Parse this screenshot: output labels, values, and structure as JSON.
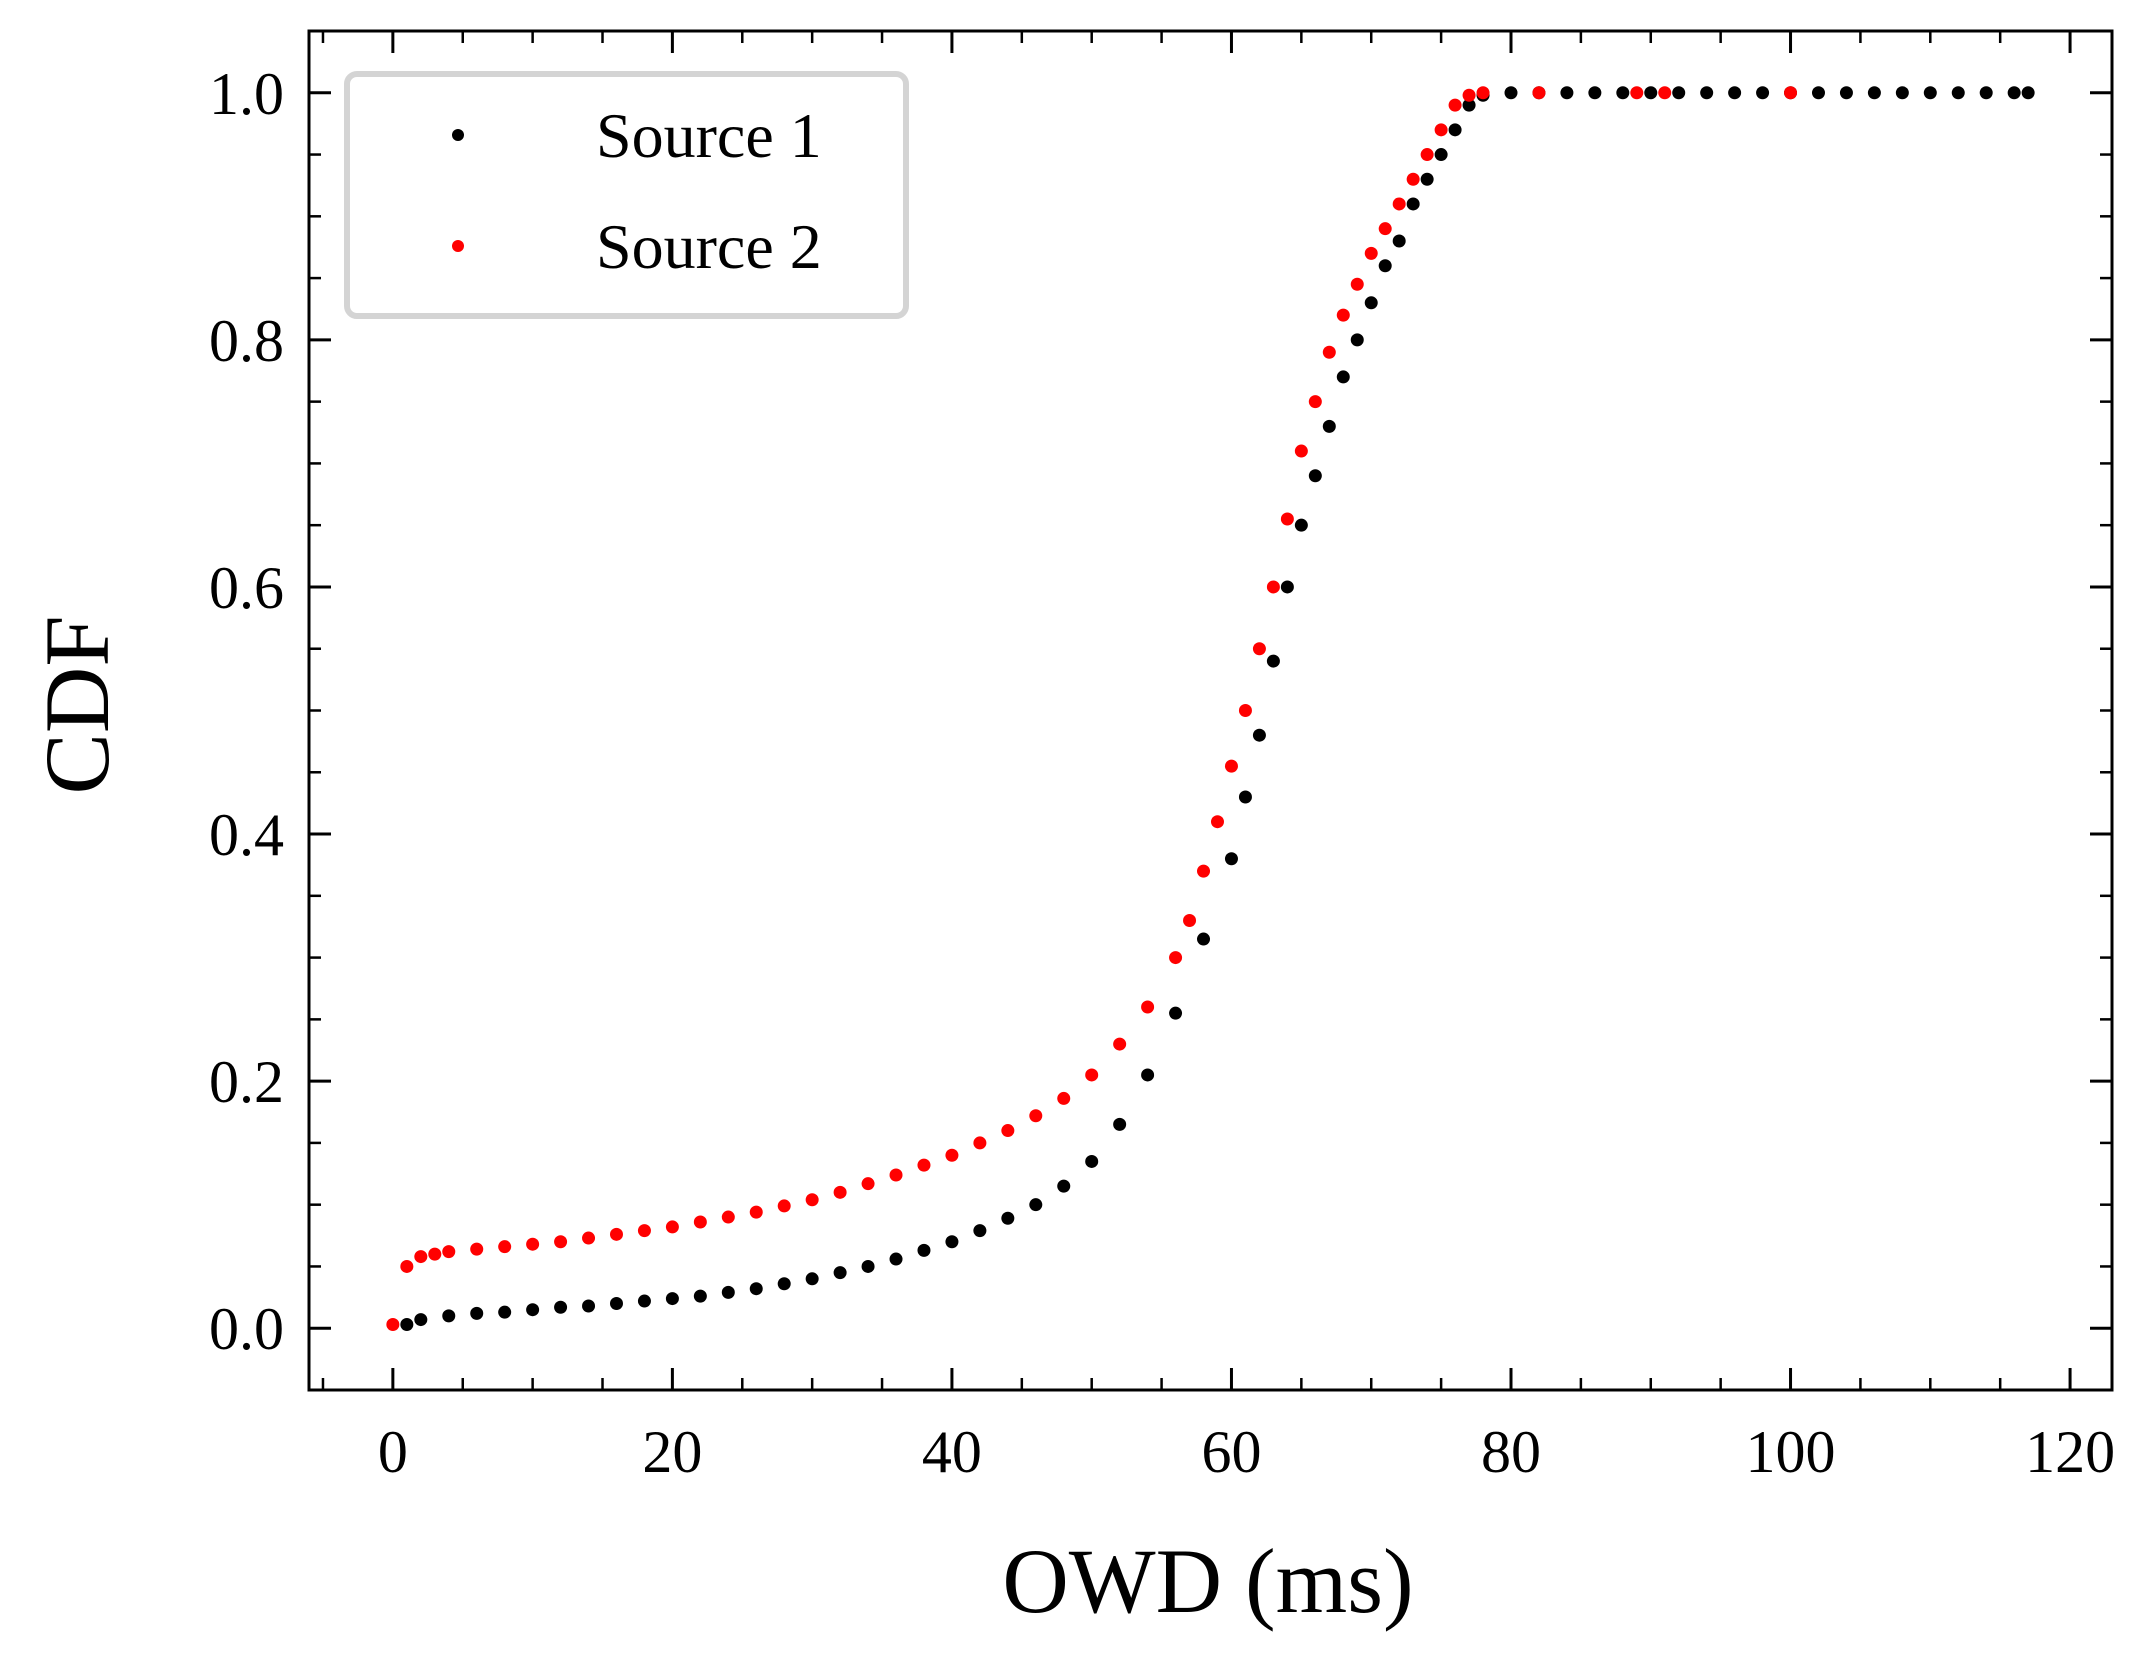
{
  "chart_data": {
    "type": "scatter",
    "xlabel": "OWD (ms)",
    "ylabel": "CDF",
    "xlim": [
      -6,
      123
    ],
    "ylim": [
      -0.05,
      1.05
    ],
    "x_ticks": [
      0,
      20,
      40,
      60,
      80,
      100,
      120
    ],
    "x_tick_labels": [
      "0",
      "20",
      "40",
      "60",
      "80",
      "100",
      "120"
    ],
    "y_ticks": [
      0.0,
      0.2,
      0.4,
      0.6,
      0.8,
      1.0
    ],
    "y_tick_labels": [
      "0.0",
      "0.2",
      "0.4",
      "0.6",
      "0.8",
      "1.0"
    ],
    "grid": false,
    "legend_position": "top-left",
    "series": [
      {
        "name": "Source 1",
        "color": "#000000",
        "x": [
          1,
          2,
          4,
          6,
          8,
          10,
          12,
          14,
          16,
          18,
          20,
          22,
          24,
          26,
          28,
          30,
          32,
          34,
          36,
          38,
          40,
          42,
          44,
          46,
          48,
          50,
          52,
          54,
          56,
          58,
          60,
          61,
          62,
          63,
          64,
          65,
          66,
          67,
          68,
          69,
          70,
          71,
          72,
          73,
          74,
          75,
          76,
          77,
          78,
          80,
          82,
          84,
          86,
          88,
          90,
          92,
          94,
          96,
          98,
          100,
          102,
          104,
          106,
          108,
          110,
          112,
          114,
          116,
          117
        ],
        "y": [
          0.003,
          0.007,
          0.01,
          0.012,
          0.013,
          0.015,
          0.017,
          0.018,
          0.02,
          0.022,
          0.024,
          0.026,
          0.029,
          0.032,
          0.036,
          0.04,
          0.045,
          0.05,
          0.056,
          0.063,
          0.07,
          0.079,
          0.089,
          0.1,
          0.115,
          0.135,
          0.165,
          0.205,
          0.255,
          0.315,
          0.38,
          0.43,
          0.48,
          0.54,
          0.6,
          0.65,
          0.69,
          0.73,
          0.77,
          0.8,
          0.83,
          0.86,
          0.88,
          0.91,
          0.93,
          0.95,
          0.97,
          0.99,
          0.998,
          1.0,
          1.0,
          1.0,
          1.0,
          1.0,
          1.0,
          1.0,
          1.0,
          1.0,
          1.0,
          1.0,
          1.0,
          1.0,
          1.0,
          1.0,
          1.0,
          1.0,
          1.0,
          1.0,
          1.0
        ]
      },
      {
        "name": "Source 2",
        "color": "#ff0000",
        "x": [
          0,
          1,
          2,
          3,
          4,
          6,
          8,
          10,
          12,
          14,
          16,
          18,
          20,
          22,
          24,
          26,
          28,
          30,
          32,
          34,
          36,
          38,
          40,
          42,
          44,
          46,
          48,
          50,
          52,
          54,
          56,
          57,
          58,
          59,
          60,
          61,
          62,
          63,
          64,
          65,
          66,
          67,
          68,
          69,
          70,
          71,
          72,
          73,
          74,
          75,
          76,
          77,
          78,
          82,
          89,
          91,
          100
        ],
        "y": [
          0.003,
          0.05,
          0.058,
          0.06,
          0.062,
          0.064,
          0.066,
          0.068,
          0.07,
          0.073,
          0.076,
          0.079,
          0.082,
          0.086,
          0.09,
          0.094,
          0.099,
          0.104,
          0.11,
          0.117,
          0.124,
          0.132,
          0.14,
          0.15,
          0.16,
          0.172,
          0.186,
          0.205,
          0.23,
          0.26,
          0.3,
          0.33,
          0.37,
          0.41,
          0.455,
          0.5,
          0.55,
          0.6,
          0.655,
          0.71,
          0.75,
          0.79,
          0.82,
          0.845,
          0.87,
          0.89,
          0.91,
          0.93,
          0.95,
          0.97,
          0.99,
          0.998,
          1.0,
          1.0,
          1.0,
          1.0,
          1.0
        ]
      }
    ]
  }
}
